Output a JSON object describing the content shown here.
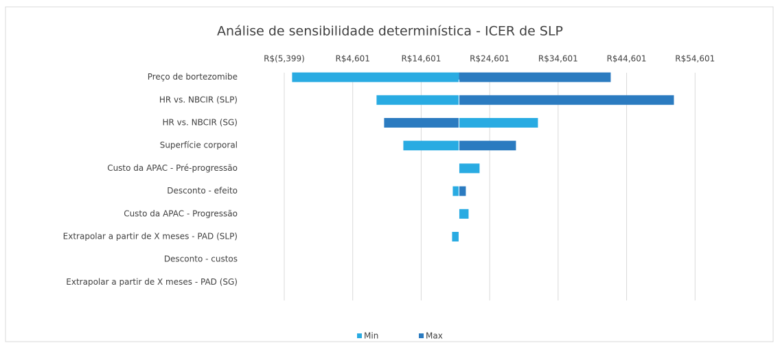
{
  "chart_data": {
    "type": "tornado",
    "title": "Análise de sensibilidade determinística - ICER de SLP",
    "categories": [
      "Preço de bortezomibe",
      "HR vs. NBCIR (SLP)",
      "HR vs. NBCIR (SG)",
      "Superfície corporal",
      "Custo da APAC - Pré-progressão",
      "Desconto - efeito",
      "Custo da APAC - Progressão",
      "Extrapolar a partir de X meses - PAD (SLP)",
      "Desconto - custos",
      "Extrapolar a partir de X meses - PAD (SG)"
    ],
    "base": 20118,
    "series": [
      {
        "name": "Min",
        "color": "#29abe2",
        "values": [
          -4256,
          8081,
          31652,
          11993,
          23127,
          19215,
          21522,
          19114,
          20118,
          20118
        ]
      },
      {
        "name": "Max",
        "color": "#2b7bc0",
        "values": [
          42284,
          51512,
          9185,
          28442,
          20118,
          21120,
          20118,
          20118,
          20118,
          20118
        ]
      }
    ],
    "xlim": [
      -5399,
      64601
    ],
    "xticks": [
      {
        "value": -5399,
        "label": "R$(5,399)"
      },
      {
        "value": 4601,
        "label": "R$4,601"
      },
      {
        "value": 14601,
        "label": "R$14,601"
      },
      {
        "value": 24601,
        "label": "R$24,601"
      },
      {
        "value": 34601,
        "label": "R$34,601"
      },
      {
        "value": 44601,
        "label": "R$44,601"
      },
      {
        "value": 54601,
        "label": "R$54,601"
      }
    ],
    "grid": true,
    "legend": "bottom"
  }
}
